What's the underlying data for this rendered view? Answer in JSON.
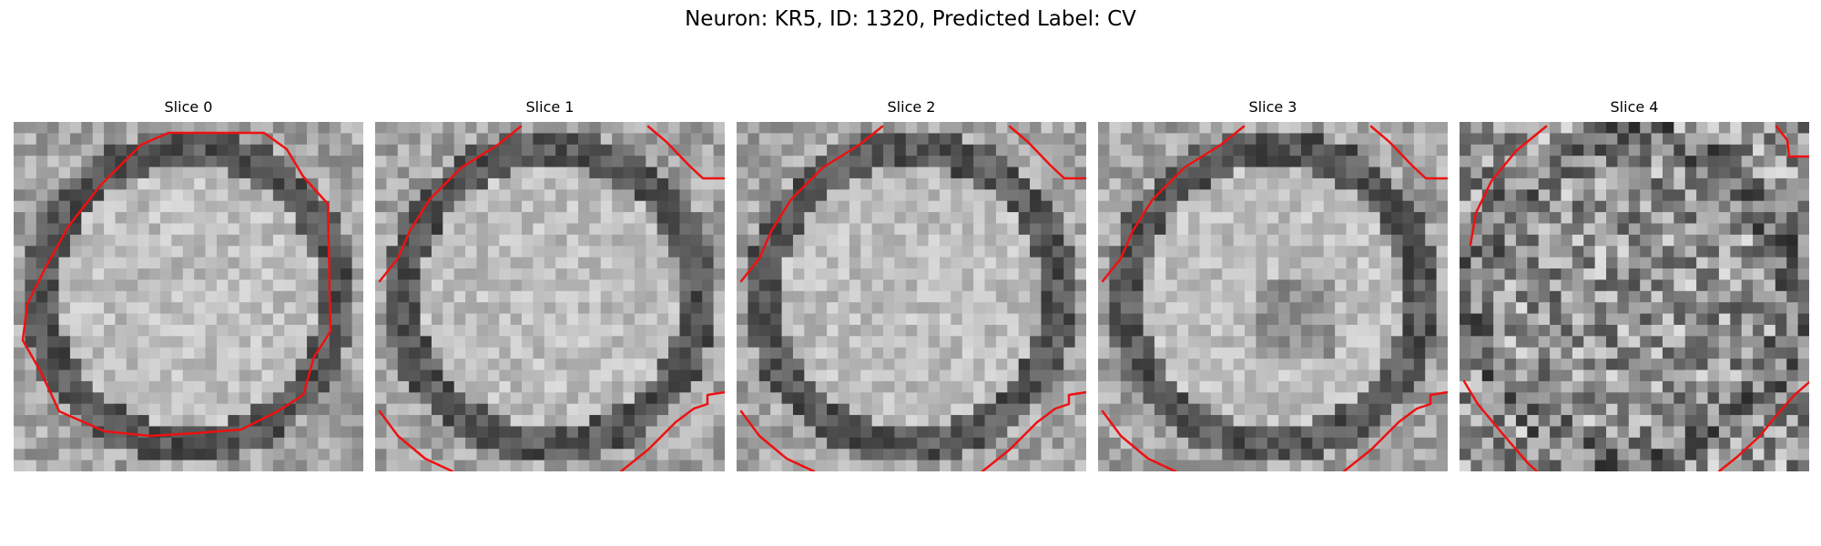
{
  "figure": {
    "title": "Neuron: KR5, ID: 1320, Predicted Label: CV"
  },
  "colors": {
    "background": "#ffffff",
    "contour": "#ee1111",
    "colormap": "gray"
  },
  "panels": [
    {
      "title": "Slice 0",
      "seed": 11,
      "ring": "full"
    },
    {
      "title": "Slice 1",
      "seed": 23,
      "ring": "ul-ur-bl-br"
    },
    {
      "title": "Slice 2",
      "seed": 37,
      "ring": "ul-ur-bl-br"
    },
    {
      "title": "Slice 3",
      "seed": 41,
      "ring": "ul-ur-bl-br"
    },
    {
      "title": "Slice 4",
      "seed": 59,
      "ring": "noise"
    }
  ]
}
